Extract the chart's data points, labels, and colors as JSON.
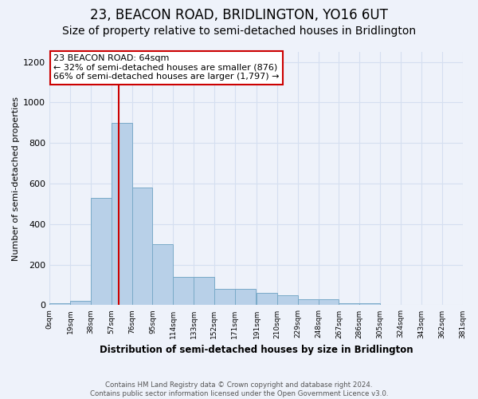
{
  "title": "23, BEACON ROAD, BRIDLINGTON, YO16 6UT",
  "subtitle": "Size of property relative to semi-detached houses in Bridlington",
  "xlabel_bottom": "Distribution of semi-detached houses by size in Bridlington",
  "ylabel": "Number of semi-detached properties",
  "footnote": "Contains HM Land Registry data © Crown copyright and database right 2024.\nContains public sector information licensed under the Open Government Licence v3.0.",
  "bin_edges": [
    0,
    19,
    38,
    57,
    76,
    95,
    114,
    133,
    152,
    171,
    191,
    210,
    229,
    248,
    267,
    286,
    305,
    324,
    343,
    362,
    381
  ],
  "bar_heights": [
    10,
    20,
    530,
    900,
    580,
    300,
    140,
    140,
    80,
    80,
    60,
    50,
    30,
    30,
    10,
    10,
    0,
    0,
    0,
    0
  ],
  "bar_color": "#b8d0e8",
  "bar_edgecolor": "#7aaac8",
  "property_sqm": 64,
  "annotation_title": "23 BEACON ROAD: 64sqm",
  "annotation_line1": "← 32% of semi-detached houses are smaller (876)",
  "annotation_line2": "66% of semi-detached houses are larger (1,797) →",
  "annotation_box_color": "#ffffff",
  "annotation_box_edgecolor": "#cc0000",
  "redline_color": "#cc0000",
  "ylim": [
    0,
    1250
  ],
  "yticks": [
    0,
    200,
    400,
    600,
    800,
    1000,
    1200
  ],
  "grid_color": "#d5dff0",
  "background_color": "#eef2fa",
  "title_fontsize": 12,
  "subtitle_fontsize": 10
}
